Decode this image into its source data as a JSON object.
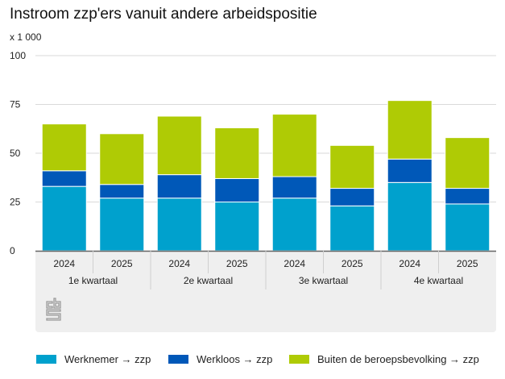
{
  "chart_data": {
    "type": "bar",
    "stacked": true,
    "title": "Instroom zzp'ers vanuit andere arbeidspositie",
    "unit_label": "x 1 000",
    "xlabel": "",
    "ylabel": "",
    "ylim": [
      0,
      100
    ],
    "yticks": [
      "0",
      "25",
      "50",
      "75",
      "100"
    ],
    "ytick_values": [
      0,
      25,
      50,
      75,
      100
    ],
    "grid": true,
    "categories": [
      "2024",
      "2025",
      "2024",
      "2025",
      "2024",
      "2025",
      "2024",
      "2025"
    ],
    "groups": [
      "1e kwartaal",
      "2e kwartaal",
      "3e kwartaal",
      "4e kwartaal"
    ],
    "series": [
      {
        "name": "Werknemer → zzp",
        "color": "#00a1cd",
        "values": [
          33,
          27,
          27,
          25,
          27,
          23,
          35,
          24
        ]
      },
      {
        "name": "Werkloos → zzp",
        "color": "#0058b8",
        "values": [
          8,
          7,
          12,
          12,
          11,
          9,
          12,
          8
        ]
      },
      {
        "name": "Buiten de beroepsbevolking → zzp",
        "color": "#afcb05",
        "values": [
          24,
          26,
          30,
          26,
          32,
          22,
          30,
          26
        ]
      }
    ],
    "legend_position": "bottom"
  },
  "logo": "cbs"
}
